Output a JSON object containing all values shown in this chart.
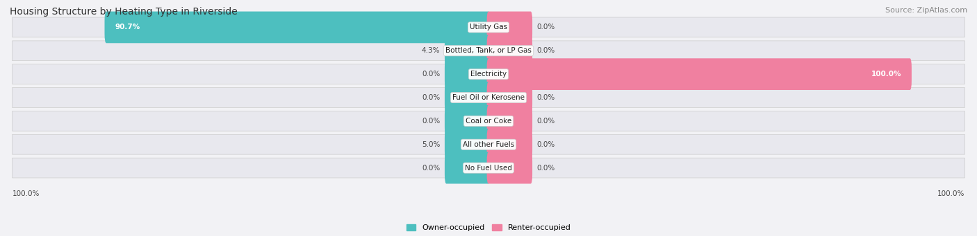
{
  "title": "Housing Structure by Heating Type in Riverside",
  "source": "Source: ZipAtlas.com",
  "categories": [
    "Utility Gas",
    "Bottled, Tank, or LP Gas",
    "Electricity",
    "Fuel Oil or Kerosene",
    "Coal or Coke",
    "All other Fuels",
    "No Fuel Used"
  ],
  "owner_values": [
    90.7,
    4.3,
    0.0,
    0.0,
    0.0,
    5.0,
    0.0
  ],
  "renter_values": [
    0.0,
    0.0,
    100.0,
    0.0,
    0.0,
    0.0,
    0.0
  ],
  "owner_color": "#4dbfbf",
  "renter_color": "#f080a0",
  "bg_color": "#f2f2f5",
  "row_bg_color": "#e8e8ee",
  "axis_label_left": "100.0%",
  "axis_label_right": "100.0%",
  "title_fontsize": 10,
  "source_fontsize": 8,
  "value_fontsize": 7.5,
  "category_fontsize": 7.5,
  "legend_fontsize": 8,
  "min_stub": 10
}
